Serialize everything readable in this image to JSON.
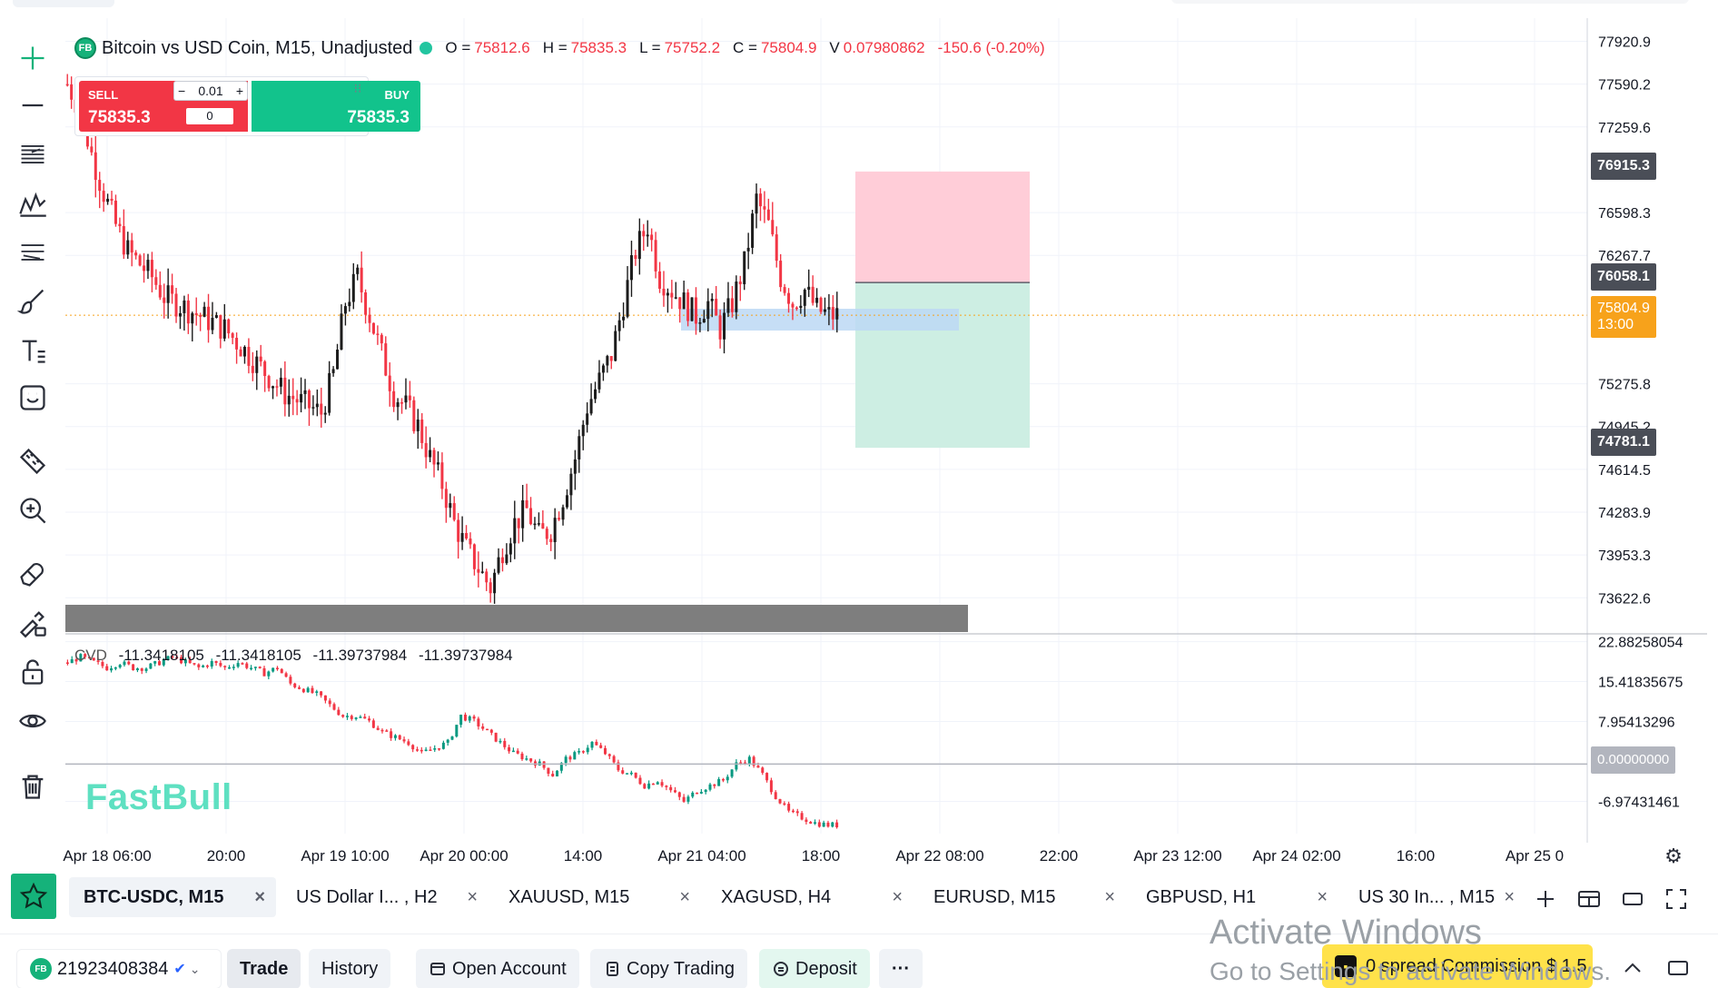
{
  "legend": {
    "badge": "FB",
    "symbol": "Bitcoin vs USD Coin, M15, Unadjusted",
    "o_label": "O =",
    "o": "75812.6",
    "h_label": "H =",
    "h": "75835.3",
    "l_label": "L =",
    "l": "75752.2",
    "c_label": "C =",
    "c": "75804.9",
    "v_label": "V",
    "v": "0.07980862",
    "change": "-150.6 (-0.20%)"
  },
  "trade_widget": {
    "sell_label": "SELL",
    "sell_price": "75835.3",
    "buy_label": "BUY",
    "buy_price": "75835.3",
    "lot": "0.01",
    "minus": "−",
    "plus": "+",
    "spread": "0"
  },
  "cvd": {
    "label": "CVD",
    "v1": "-11.3418105",
    "v2": "-11.3418105",
    "v3": "-11.39737984",
    "v4": "-11.39737984"
  },
  "watermark": "FastBull",
  "price_axis": [
    "77920.9",
    "77590.2",
    "77259.6",
    "76598.3",
    "76267.7",
    "75275.8",
    "74945.2",
    "74614.5",
    "74283.9",
    "73953.3",
    "73622.6"
  ],
  "cvd_axis": [
    "22.88258054",
    "15.41835675",
    "7.95413296",
    "-6.97431461"
  ],
  "price_labels": {
    "tp": "76915.3",
    "entry": "76058.1",
    "last": "75804.9",
    "countdown": "13:00",
    "sl": "74781.1",
    "cvd_zero": "0.00000000"
  },
  "time_axis": [
    "Apr 18 06:00",
    "20:00",
    "Apr 19 10:00",
    "Apr 20 00:00",
    "14:00",
    "Apr 21 04:00",
    "18:00",
    "Apr 22 08:00",
    "22:00",
    "Apr 23 12:00",
    "Apr 24 02:00",
    "16:00",
    "Apr 25 0"
  ],
  "tabs": [
    {
      "label": "BTC-USDC, M15"
    },
    {
      "label": "US Dollar I... , H2"
    },
    {
      "label": "XAUUSD, M15"
    },
    {
      "label": "XAGUSD, H4"
    },
    {
      "label": "EURUSD, M15"
    },
    {
      "label": "GBPUSD, H1"
    },
    {
      "label": "US 30 In...  , M15"
    }
  ],
  "tab_close": "×",
  "bottom": {
    "badge": "FB",
    "account": "21923408384",
    "trade": "Trade",
    "history": "History",
    "open_account": "Open Account",
    "copy_trading": "Copy Trading",
    "deposit": "Deposit",
    "more": "···",
    "promo": "0 spread Commission $ 1.5"
  },
  "os_overlay": {
    "line1": "Activate Windows",
    "line2": "Go to Settings to activate Windows."
  },
  "colors": {
    "up": "#089981",
    "down": "#f23645",
    "accent": "#15b27a",
    "tp_zone": "#ffcdd8",
    "sl_zone": "#cdeee3",
    "highlight": "#bcd8f5"
  },
  "chart_data": {
    "type": "candlestick",
    "title": "Bitcoin vs USD Coin, M15, Unadjusted",
    "price_close_path": [
      77590,
      77400,
      77050,
      76750,
      76500,
      76300,
      76200,
      76100,
      75950,
      75900,
      75850,
      75800,
      75750,
      75700,
      75600,
      75500,
      75400,
      75300,
      75200,
      75150,
      75100,
      75050,
      75350,
      75900,
      76100,
      75800,
      75500,
      75200,
      75100,
      74950,
      74700,
      74500,
      74200,
      74000,
      73850,
      73700,
      74000,
      74200,
      74300,
      74100,
      74150,
      74400,
      74700,
      75100,
      75300,
      75500,
      75900,
      76300,
      76500,
      76100,
      76000,
      75900,
      75800,
      75900,
      75700,
      75900,
      76200,
      76700,
      76500,
      76100,
      75900,
      76000,
      75850,
      75804.9
    ],
    "cvd_path": [
      19,
      20,
      19,
      18,
      19,
      18,
      18,
      19,
      20,
      19,
      18,
      19,
      18,
      19,
      18,
      17,
      18,
      15,
      14,
      13,
      11,
      9,
      9,
      8,
      6,
      5,
      4,
      2,
      3,
      4,
      9,
      8,
      6,
      4,
      2,
      1,
      0,
      -2,
      1,
      2,
      4,
      2,
      -1,
      -2,
      -4,
      -3,
      -5,
      -7,
      -5,
      -4,
      -3,
      0,
      1,
      -2,
      -6,
      -9,
      -10,
      -11,
      -11.4
    ],
    "ylim": [
      73400,
      78100
    ],
    "cvd_ylim": [
      -13,
      24
    ]
  }
}
